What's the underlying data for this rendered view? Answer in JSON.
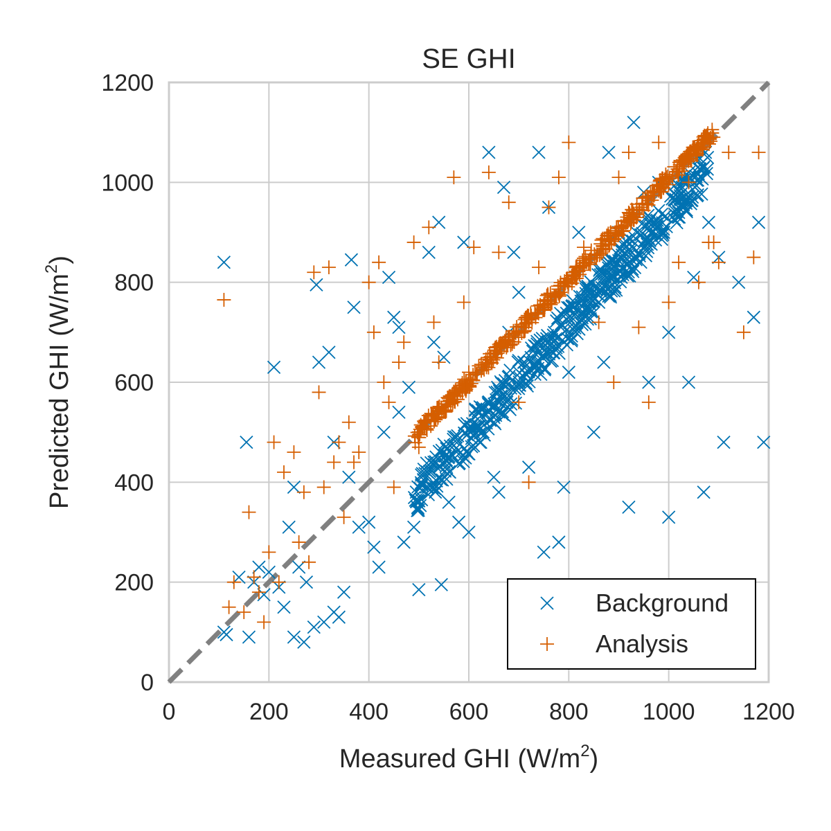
{
  "chart_data": {
    "type": "scatter",
    "title": "SE GHI",
    "xlabel": {
      "text": "Measured GHI (W/m",
      "sup": "2",
      "close": ")"
    },
    "ylabel": {
      "text": "Predicted GHI (W/m",
      "sup": "2",
      "close": ")"
    },
    "xlim": [
      0,
      1200
    ],
    "ylim": [
      0,
      1200
    ],
    "xticks": [
      "0",
      "200",
      "400",
      "600",
      "800",
      "1000",
      "1200"
    ],
    "yticks": [
      "0",
      "200",
      "400",
      "600",
      "800",
      "1000",
      "1200"
    ],
    "grid": true,
    "legend_position": "bottom-right",
    "reference_line": {
      "style": "dashed",
      "color": "#808080",
      "x": [
        0,
        1200
      ],
      "y": [
        0,
        1200
      ]
    },
    "series": [
      {
        "name": "Background",
        "marker": "x",
        "color": "#0072b2",
        "points": [
          [
            110,
            840
          ],
          [
            110,
            100
          ],
          [
            115,
            95
          ],
          [
            140,
            210
          ],
          [
            155,
            480
          ],
          [
            160,
            90
          ],
          [
            170,
            200
          ],
          [
            180,
            230
          ],
          [
            190,
            175
          ],
          [
            200,
            220
          ],
          [
            210,
            630
          ],
          [
            220,
            190
          ],
          [
            230,
            150
          ],
          [
            240,
            310
          ],
          [
            250,
            390
          ],
          [
            250,
            90
          ],
          [
            260,
            230
          ],
          [
            270,
            80
          ],
          [
            275,
            200
          ],
          [
            290,
            110
          ],
          [
            295,
            795
          ],
          [
            300,
            640
          ],
          [
            310,
            120
          ],
          [
            320,
            660
          ],
          [
            330,
            140
          ],
          [
            330,
            480
          ],
          [
            340,
            130
          ],
          [
            350,
            180
          ],
          [
            360,
            410
          ],
          [
            365,
            845
          ],
          [
            370,
            750
          ],
          [
            380,
            310
          ],
          [
            400,
            320
          ],
          [
            410,
            270
          ],
          [
            420,
            230
          ],
          [
            430,
            500
          ],
          [
            440,
            810
          ],
          [
            450,
            730
          ],
          [
            460,
            710
          ],
          [
            460,
            540
          ],
          [
            470,
            280
          ],
          [
            480,
            590
          ],
          [
            490,
            310
          ],
          [
            500,
            185
          ],
          [
            520,
            860
          ],
          [
            530,
            680
          ],
          [
            540,
            920
          ],
          [
            545,
            195
          ],
          [
            550,
            650
          ],
          [
            560,
            360
          ],
          [
            580,
            320
          ],
          [
            590,
            880
          ],
          [
            600,
            300
          ],
          [
            620,
            540
          ],
          [
            640,
            1060
          ],
          [
            650,
            410
          ],
          [
            660,
            380
          ],
          [
            670,
            990
          ],
          [
            680,
            700
          ],
          [
            690,
            860
          ],
          [
            700,
            780
          ],
          [
            710,
            640
          ],
          [
            720,
            430
          ],
          [
            740,
            1060
          ],
          [
            750,
            260
          ],
          [
            760,
            950
          ],
          [
            780,
            280
          ],
          [
            790,
            390
          ],
          [
            800,
            620
          ],
          [
            820,
            900
          ],
          [
            850,
            500
          ],
          [
            860,
            760
          ],
          [
            870,
            640
          ],
          [
            880,
            1060
          ],
          [
            900,
            900
          ],
          [
            920,
            350
          ],
          [
            930,
            1120
          ],
          [
            950,
            980
          ],
          [
            960,
            600
          ],
          [
            980,
            1000
          ],
          [
            990,
            900
          ],
          [
            1000,
            330
          ],
          [
            1000,
            700
          ],
          [
            1030,
            950
          ],
          [
            1040,
            600
          ],
          [
            1050,
            810
          ],
          [
            1060,
            1050
          ],
          [
            1070,
            380
          ],
          [
            1080,
            920
          ],
          [
            1100,
            850
          ],
          [
            1110,
            480
          ],
          [
            1140,
            800
          ],
          [
            1170,
            730
          ],
          [
            1180,
            920
          ],
          [
            1190,
            480
          ]
        ],
        "bands": [
          {
            "x0": 490,
            "x1": 1080,
            "y0": 370,
            "y1": 1030,
            "spread": 40,
            "count": 520
          }
        ]
      },
      {
        "name": "Analysis",
        "marker": "+",
        "color": "#d55e00",
        "points": [
          [
            110,
            765
          ],
          [
            120,
            150
          ],
          [
            130,
            200
          ],
          [
            150,
            140
          ],
          [
            160,
            340
          ],
          [
            170,
            210
          ],
          [
            180,
            180
          ],
          [
            190,
            120
          ],
          [
            200,
            260
          ],
          [
            210,
            480
          ],
          [
            220,
            200
          ],
          [
            230,
            420
          ],
          [
            250,
            460
          ],
          [
            260,
            280
          ],
          [
            270,
            380
          ],
          [
            280,
            240
          ],
          [
            290,
            820
          ],
          [
            300,
            580
          ],
          [
            310,
            390
          ],
          [
            320,
            830
          ],
          [
            330,
            440
          ],
          [
            340,
            480
          ],
          [
            350,
            330
          ],
          [
            360,
            520
          ],
          [
            370,
            440
          ],
          [
            380,
            460
          ],
          [
            400,
            800
          ],
          [
            410,
            700
          ],
          [
            420,
            840
          ],
          [
            430,
            600
          ],
          [
            440,
            560
          ],
          [
            450,
            390
          ],
          [
            460,
            640
          ],
          [
            470,
            680
          ],
          [
            490,
            880
          ],
          [
            500,
            470
          ],
          [
            520,
            910
          ],
          [
            530,
            720
          ],
          [
            540,
            640
          ],
          [
            570,
            1010
          ],
          [
            590,
            760
          ],
          [
            600,
            620
          ],
          [
            610,
            870
          ],
          [
            640,
            1020
          ],
          [
            660,
            860
          ],
          [
            680,
            960
          ],
          [
            700,
            560
          ],
          [
            720,
            400
          ],
          [
            740,
            830
          ],
          [
            760,
            950
          ],
          [
            780,
            1010
          ],
          [
            800,
            1080
          ],
          [
            830,
            870
          ],
          [
            860,
            720
          ],
          [
            890,
            600
          ],
          [
            900,
            1010
          ],
          [
            920,
            1060
          ],
          [
            940,
            710
          ],
          [
            960,
            560
          ],
          [
            980,
            1080
          ],
          [
            1000,
            760
          ],
          [
            1020,
            840
          ],
          [
            1040,
            1000
          ],
          [
            1060,
            800
          ],
          [
            1080,
            880
          ],
          [
            1090,
            880
          ],
          [
            1100,
            840
          ],
          [
            1120,
            1060
          ],
          [
            1150,
            700
          ],
          [
            1170,
            850
          ],
          [
            1180,
            1060
          ]
        ],
        "bands": [
          {
            "x0": 490,
            "x1": 1090,
            "y0": 490,
            "y1": 1100,
            "spread": 14,
            "count": 460
          }
        ]
      }
    ]
  }
}
